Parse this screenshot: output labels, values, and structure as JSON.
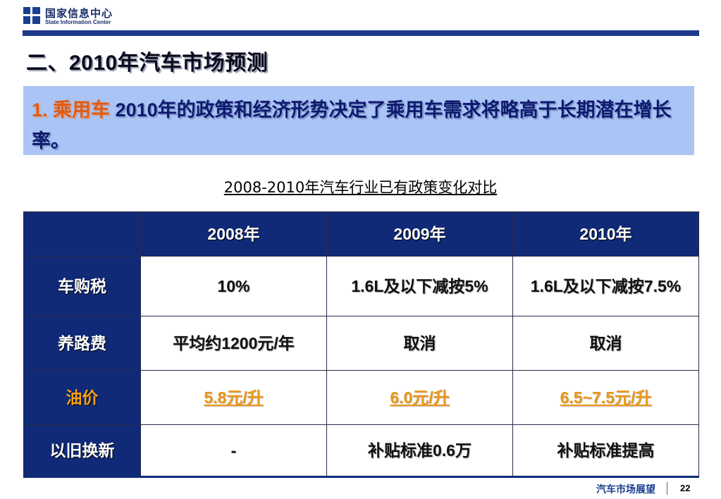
{
  "header": {
    "org_name_cn": "国家信息中心",
    "org_name_en": "State Information Center",
    "logo_icon": "sic-cross-logo-icon",
    "brand_color": "#1e3a8c"
  },
  "slide": {
    "title": "二、2010年汽车市场预测",
    "subheading_prefix": "1. 乘用车",
    "subheading_text": "2010年的政策和经济形势决定了乘用车需求将略高于长期潜在增长率。"
  },
  "table": {
    "caption": "2008-2010年汽车行业已有政策变化对比",
    "columns": [
      "",
      "2008年",
      "2009年",
      "2010年"
    ],
    "rows": [
      {
        "label": "车购税",
        "cells": [
          "10%",
          "1.6L及以下减按5%",
          "1.6L及以下减按7.5%"
        ]
      },
      {
        "label": "养路费",
        "cells": [
          "平均约1200元/年",
          "取消",
          "取消"
        ]
      },
      {
        "label": "油价",
        "cells": [
          "5.8元/升",
          "6.0元/升",
          "6.5~7.5元/升"
        ]
      },
      {
        "label": "以旧换新",
        "cells": [
          "-",
          "补贴标准0.6万",
          "补贴标准提高"
        ]
      }
    ]
  },
  "footer": {
    "section_label": "汽车市场展望",
    "page_number": "22"
  },
  "colors": {
    "table_header_bg": "#102a78",
    "subheading_bg": "#a9c4f5",
    "highlight_orange": "#e8971b"
  }
}
